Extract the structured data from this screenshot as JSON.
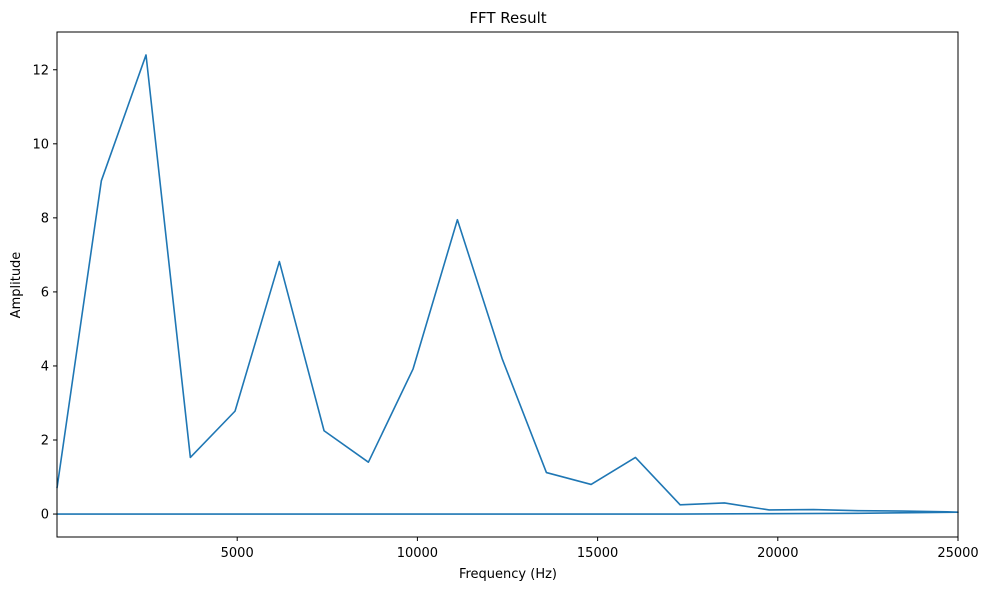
{
  "chart_data": {
    "type": "line",
    "title": "FFT Result",
    "xlabel": "Frequency (Hz)",
    "ylabel": "Amplitude",
    "xlim": [
      0,
      25000
    ],
    "ylim": [
      -0.62,
      13.02
    ],
    "xticks": [
      5000,
      10000,
      15000,
      20000,
      25000
    ],
    "xtick_labels": [
      "5000",
      "10000",
      "15000",
      "20000",
      "25000"
    ],
    "yticks": [
      0,
      2,
      4,
      6,
      8,
      10,
      12
    ],
    "ytick_labels": [
      "0",
      "2",
      "4",
      "6",
      "8",
      "10",
      "12"
    ],
    "grid": false,
    "line_color": "#1f77b4",
    "series": [
      {
        "x": [
          0,
          1230,
          2470,
          3700,
          4940,
          6170,
          7410,
          8640,
          9880,
          11110,
          12350,
          13580,
          14820,
          16050,
          17290,
          18520,
          19760,
          20990,
          22230,
          23460,
          24700,
          25000,
          22230,
          19760,
          17290,
          14820,
          12350,
          9880,
          7410,
          4940,
          2470,
          0
        ],
        "y": [
          0.7,
          9.0,
          12.4,
          1.53,
          2.78,
          6.82,
          2.25,
          1.4,
          3.92,
          7.95,
          4.2,
          1.12,
          0.8,
          1.53,
          0.25,
          0.3,
          0.11,
          0.12,
          0.09,
          0.08,
          0.06,
          0.05,
          0.02,
          0.01,
          0.0,
          0.0,
          0.0,
          0.0,
          0.0,
          0.0,
          0.0,
          0.0
        ]
      }
    ]
  }
}
